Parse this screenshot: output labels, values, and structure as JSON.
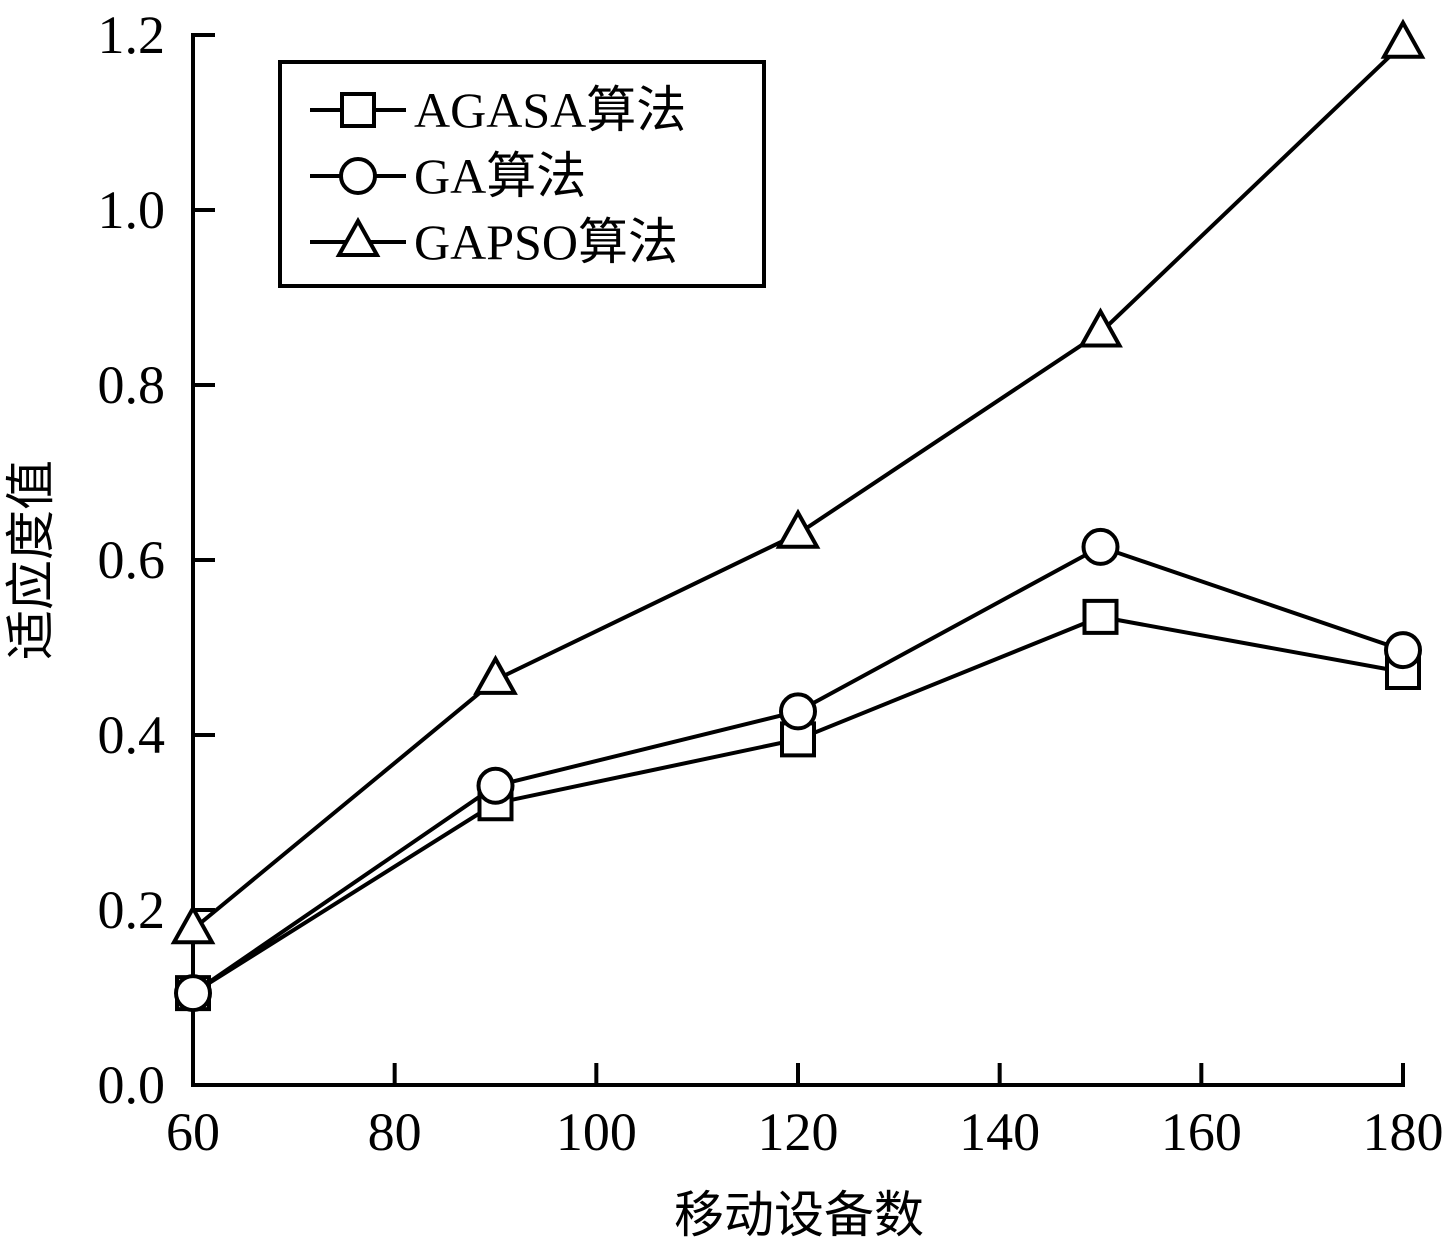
{
  "chart_data": {
    "type": "line",
    "xlabel": "移动设备数",
    "ylabel": "适应度值",
    "xlim": [
      60,
      180
    ],
    "ylim": [
      0.0,
      1.2
    ],
    "xticks": [
      60,
      80,
      100,
      120,
      140,
      160,
      180
    ],
    "yticks": [
      0.0,
      0.2,
      0.4,
      0.6,
      0.8,
      1.0,
      1.2
    ],
    "xtick_labels": [
      "60",
      "80",
      "100",
      "120",
      "140",
      "160",
      "180"
    ],
    "ytick_labels": [
      "0.0",
      "0.2",
      "0.4",
      "0.6",
      "0.8",
      "1.0",
      "1.2"
    ],
    "grid": false,
    "legend_position": "top-left",
    "x": [
      60,
      90,
      120,
      150,
      180
    ],
    "series": [
      {
        "name": "AGASA算法",
        "marker": "square",
        "values": [
          0.105,
          0.322,
          0.395,
          0.535,
          0.472
        ]
      },
      {
        "name": "GA算法",
        "marker": "circle",
        "values": [
          0.105,
          0.342,
          0.427,
          0.615,
          0.497
        ]
      },
      {
        "name": "GAPSO算法",
        "marker": "triangle",
        "values": [
          0.178,
          0.463,
          0.63,
          0.86,
          1.19
        ]
      }
    ]
  }
}
